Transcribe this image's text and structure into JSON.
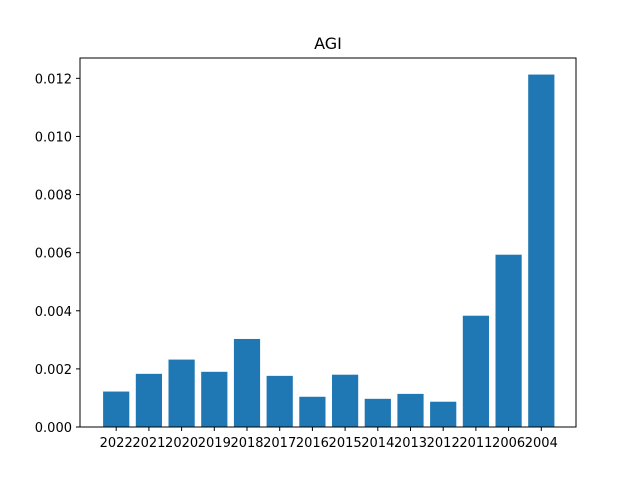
{
  "chart_data": {
    "type": "bar",
    "title": "AGI",
    "xlabel": "",
    "ylabel": "",
    "categories": [
      "2022",
      "2021",
      "2020",
      "2019",
      "2018",
      "2017",
      "2016",
      "2015",
      "2014",
      "2013",
      "2012",
      "2011",
      "2006",
      "2004"
    ],
    "values": [
      0.00122,
      0.00183,
      0.00232,
      0.0019,
      0.00303,
      0.00176,
      0.00104,
      0.0018,
      0.00097,
      0.00114,
      0.00087,
      0.00383,
      0.00593,
      0.01213
    ],
    "ylim": [
      0,
      0.0127
    ],
    "yticks": [
      0.0,
      0.002,
      0.004,
      0.006,
      0.008,
      0.01,
      0.012
    ],
    "ytick_labels": [
      "0.000",
      "0.002",
      "0.004",
      "0.006",
      "0.008",
      "0.010",
      "0.012"
    ],
    "bar_color": "#1f77b4",
    "grid": false,
    "legend": "none"
  }
}
